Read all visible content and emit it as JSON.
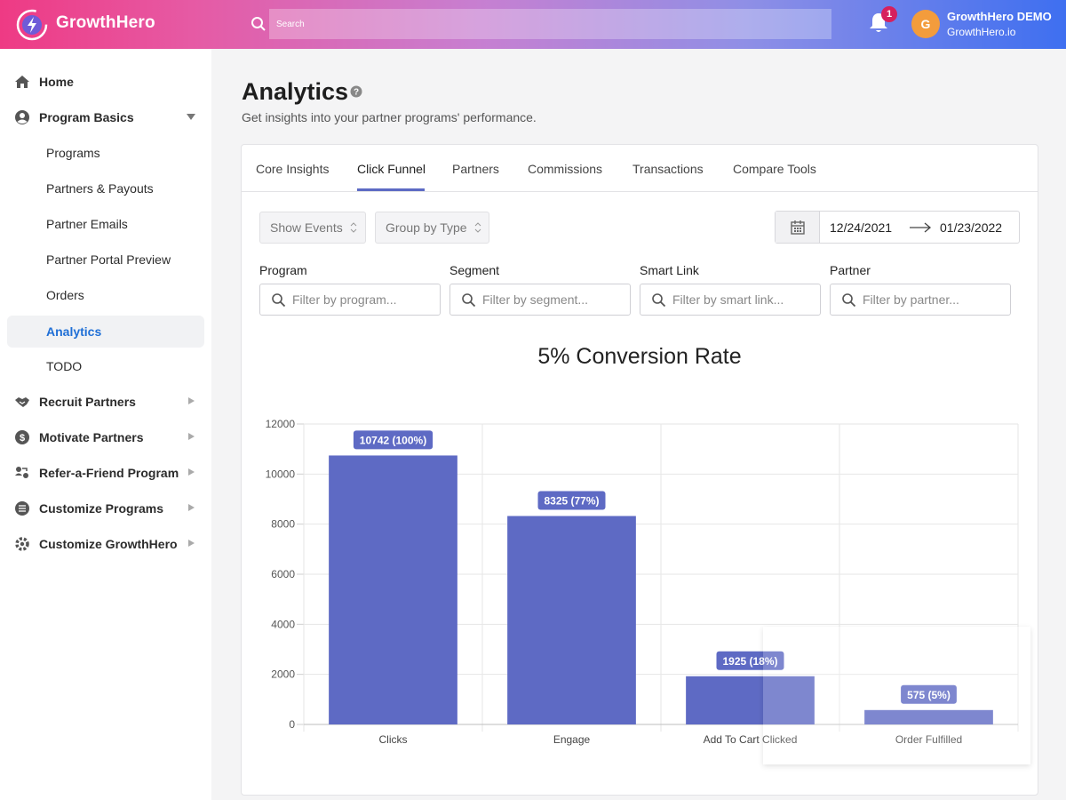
{
  "app": {
    "brand": "GrowthHero"
  },
  "header": {
    "search_placeholder": "Search",
    "notification_count": "1",
    "user": {
      "initial": "G",
      "name": "GrowthHero DEMO",
      "org": "GrowthHero.io"
    }
  },
  "sidebar": {
    "home": "Home",
    "program_basics": "Program Basics",
    "sub": [
      "Programs",
      "Partners & Payouts",
      "Partner Emails",
      "Partner Portal Preview",
      "Orders",
      "Analytics",
      "TODO"
    ],
    "recruit": "Recruit Partners",
    "motivate": "Motivate Partners",
    "refer": "Refer-a-Friend Program",
    "customize_programs": "Customize Programs",
    "customize_growthhero": "Customize GrowthHero"
  },
  "page": {
    "title": "Analytics",
    "subtitle": "Get insights into your partner programs' performance."
  },
  "tabs": [
    "Core Insights",
    "Click Funnel",
    "Partners",
    "Commissions",
    "Transactions",
    "Compare Tools"
  ],
  "controls": {
    "show_events": "Show Events",
    "group_by": "Group by Type",
    "date_start": "12/24/2021",
    "date_end": "01/23/2022"
  },
  "filters": {
    "program": {
      "label": "Program",
      "placeholder": "Filter by program..."
    },
    "segment": {
      "label": "Segment",
      "placeholder": "Filter by segment..."
    },
    "smart_link": {
      "label": "Smart Link",
      "placeholder": "Filter by smart link..."
    },
    "partner": {
      "label": "Partner",
      "placeholder": "Filter by partner..."
    }
  },
  "colors": {
    "bar": "#5e6ac4",
    "accent": "#1f6fd6",
    "badge": "#d6205d"
  },
  "chart_data": {
    "type": "bar",
    "title": "5% Conversion Rate",
    "categories": [
      "Clicks",
      "Engage",
      "Add To Cart Clicked",
      "Order Fulfilled"
    ],
    "values": [
      10742,
      8325,
      1925,
      575
    ],
    "data_labels": [
      "10742 (100%)",
      "8325 (77%)",
      "1925 (18%)",
      "575 (5%)"
    ],
    "yticks": [
      "0",
      "2000",
      "4000",
      "6000",
      "8000",
      "10000",
      "12000"
    ],
    "ylim": [
      0,
      12000
    ],
    "xlabel": "",
    "ylabel": ""
  }
}
